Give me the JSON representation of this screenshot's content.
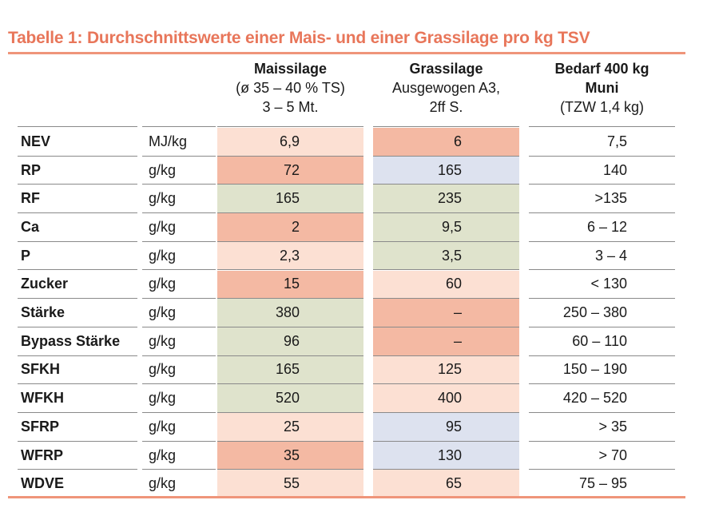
{
  "title": "Tabelle 1: Durchschnittswerte einer Mais- und einer Grassilage pro kg TSV",
  "colors": {
    "accent": "#e8765a",
    "light": "#fce0d3",
    "strong": "#f4b9a3",
    "green": "#dfe3cc",
    "blue": "#dde2ef",
    "none": "#ffffff"
  },
  "columns": {
    "mais": {
      "line1": "Maissilage",
      "line2": "(ø 35 – 40 % TS)",
      "line3": "3 – 5 Mt."
    },
    "gras": {
      "line1": "Grassilage",
      "line2": "Ausgewogen A3,",
      "line3": "2ff S."
    },
    "bedarf": {
      "line1": "Bedarf 400 kg",
      "line2": "Muni",
      "line3": "(TZW 1,4 kg)"
    }
  },
  "rows": [
    {
      "name": "NEV",
      "unit": "MJ/kg",
      "mais": "6,9",
      "mais_color": "light",
      "gras": "6",
      "gras_color": "strong",
      "bedarf": "7,5"
    },
    {
      "name": "RP",
      "unit": "g/kg",
      "mais": "72",
      "mais_color": "strong",
      "gras": "165",
      "gras_color": "blue",
      "bedarf": "140"
    },
    {
      "name": "RF",
      "unit": "g/kg",
      "mais": "165",
      "mais_color": "green",
      "gras": "235",
      "gras_color": "green",
      "bedarf": ">135"
    },
    {
      "name": "Ca",
      "unit": "g/kg",
      "mais": "2",
      "mais_color": "strong",
      "gras": "9,5",
      "gras_color": "green",
      "bedarf": "6 – 12"
    },
    {
      "name": "P",
      "unit": "g/kg",
      "mais": "2,3",
      "mais_color": "light",
      "gras": "3,5",
      "gras_color": "green",
      "bedarf": "3 – 4"
    },
    {
      "name": "Zucker",
      "unit": "g/kg",
      "mais": "15",
      "mais_color": "strong",
      "gras": "60",
      "gras_color": "light",
      "bedarf": "< 130"
    },
    {
      "name": "Stärke",
      "unit": "g/kg",
      "mais": "380",
      "mais_color": "green",
      "gras": "–",
      "gras_color": "strong",
      "bedarf": "250 – 380"
    },
    {
      "name": "Bypass Stärke",
      "unit": "g/kg",
      "mais": "96",
      "mais_color": "green",
      "gras": "–",
      "gras_color": "strong",
      "bedarf": "60 – 110"
    },
    {
      "name": "SFKH",
      "unit": "g/kg",
      "mais": "165",
      "mais_color": "green",
      "gras": "125",
      "gras_color": "light",
      "bedarf": "150 – 190"
    },
    {
      "name": "WFKH",
      "unit": "g/kg",
      "mais": "520",
      "mais_color": "green",
      "gras": "400",
      "gras_color": "light",
      "bedarf": "420 – 520"
    },
    {
      "name": "SFRP",
      "unit": "g/kg",
      "mais": "25",
      "mais_color": "light",
      "gras": "95",
      "gras_color": "blue",
      "bedarf": "> 35"
    },
    {
      "name": "WFRP",
      "unit": "g/kg",
      "mais": "35",
      "mais_color": "strong",
      "gras": "130",
      "gras_color": "blue",
      "bedarf": "> 70"
    },
    {
      "name": "WDVE",
      "unit": "g/kg",
      "mais": "55",
      "mais_color": "light",
      "gras": "65",
      "gras_color": "light",
      "bedarf": "75 – 95"
    }
  ]
}
